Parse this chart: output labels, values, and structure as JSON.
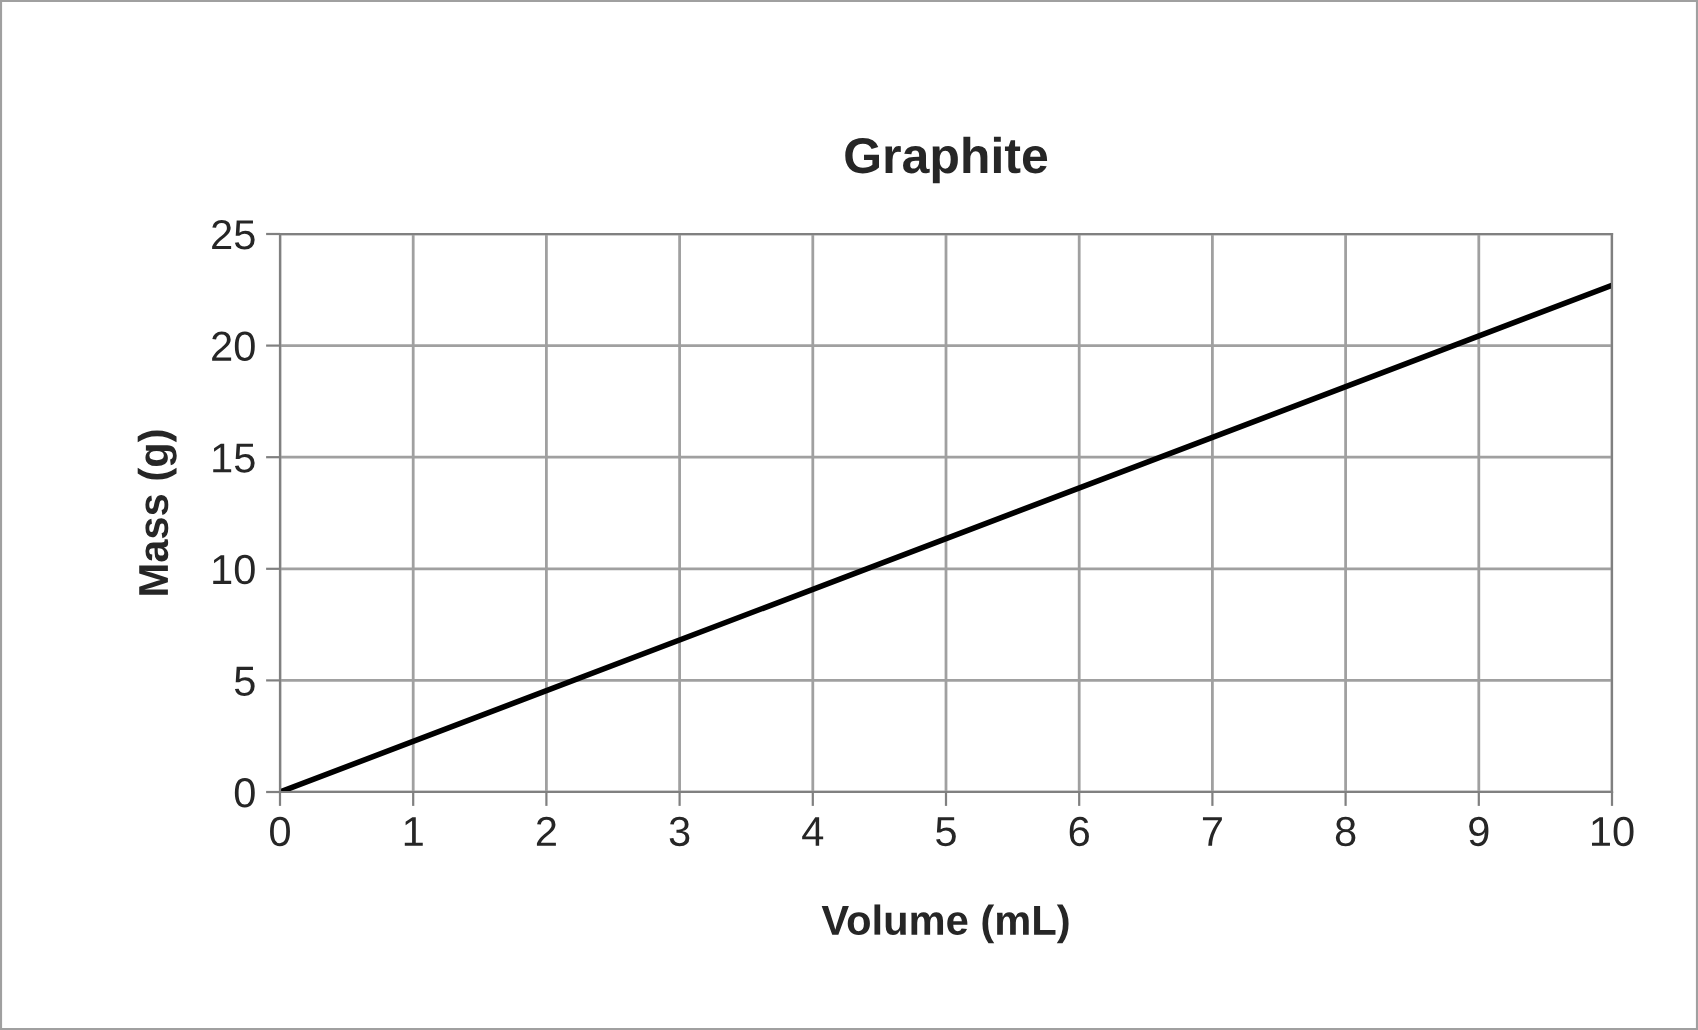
{
  "chart_data": {
    "type": "line",
    "title": "Graphite",
    "xlabel": "Volume (mL)",
    "ylabel": "Mass (g)",
    "x": [
      0,
      10
    ],
    "series": [
      {
        "color": "#000000",
        "values": [
          0,
          22.7
        ]
      }
    ],
    "xlim": [
      0,
      10
    ],
    "xticks": [
      0,
      1,
      2,
      3,
      4,
      5,
      6,
      7,
      8,
      9,
      10
    ],
    "ylim": [
      0,
      25
    ],
    "yticks": [
      0,
      5,
      10,
      15,
      20,
      25
    ],
    "grid": true,
    "legend": false,
    "marker": "none",
    "line_style": "solid"
  }
}
